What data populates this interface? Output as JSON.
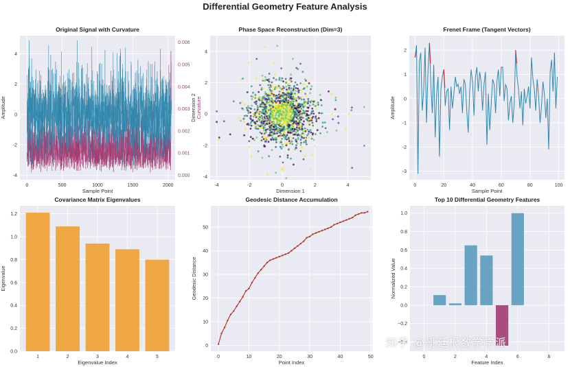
{
  "figure": {
    "title": "Differential Geometry Feature Analysis",
    "watermark": "知乎 @哥廷根数学学派"
  },
  "colors": {
    "panel_bg": "#eaeaf2",
    "grid": "#ffffff",
    "signal": "#2e86ab",
    "curvature": "#a23b72",
    "bars": "#f0a030",
    "geodesic": "#b03a2e",
    "feature_bars": "#5b9bbe",
    "feature_neg": "#a23b72",
    "tangent": "#e0302a"
  },
  "chart_data": [
    {
      "id": "p1",
      "type": "line",
      "title": "Original Signal with Curvature",
      "xlabel": "Sample Point",
      "ylabel": "Amplitude",
      "y2label": "Curvature",
      "xlim": [
        -100,
        2100
      ],
      "ylim": [
        -4.3,
        5.2
      ],
      "y2lim": [
        -0.0002,
        0.0063
      ],
      "xticks": [
        0,
        500,
        1000,
        1500,
        2000
      ],
      "yticks": [
        -4,
        -2,
        0,
        2,
        4
      ],
      "y2ticks": [
        0.0,
        0.001,
        0.002,
        0.003,
        0.004,
        0.005,
        0.006
      ],
      "y2ticklabels": [
        "0.000",
        "0.001",
        "0.002",
        "0.003",
        "0.004",
        "0.005",
        "0.006"
      ],
      "series": [
        {
          "style": "dense-noisy",
          "n_points": 2048,
          "mean": 0.0,
          "spread": 1.7,
          "spikes_to": 4.9
        },
        {
          "style": "curvature",
          "n_points": 2048,
          "floor": 0.0001,
          "typical": 0.0012,
          "max": 0.0062
        }
      ]
    },
    {
      "id": "p2",
      "type": "scatter",
      "title": "Phase Space Reconstruction (Dim=3)",
      "xlabel": "Dimension 1",
      "ylabel": "Dimension 2",
      "xlim": [
        -4.4,
        5.4
      ],
      "ylim": [
        -4.2,
        5.0
      ],
      "xticks": [
        -4,
        -2,
        0,
        2,
        4
      ],
      "yticks": [
        -4,
        -2,
        0,
        2,
        4
      ],
      "colormap": [
        "#440154",
        "#3b528b",
        "#21918c",
        "#5ec962",
        "#fde725"
      ],
      "cloud": {
        "n_points": 1500,
        "center": [
          0,
          0
        ],
        "spread": 1.0,
        "extent_x": [
          -4.0,
          5.0
        ],
        "extent_y": [
          -4.1,
          4.8
        ]
      }
    },
    {
      "id": "p3",
      "type": "line",
      "title": "Frenet Frame (Tangent Vectors)",
      "xlabel": "Sample Point",
      "ylabel": "Amplitude",
      "xlim": [
        -4,
        104
      ],
      "ylim": [
        -3.35,
        2.6
      ],
      "xticks": [
        0,
        20,
        40,
        60,
        80,
        100
      ],
      "yticks": [
        -3,
        -2,
        -1,
        0,
        1,
        2
      ],
      "x": [
        0,
        1,
        2,
        3,
        4,
        5,
        6,
        7,
        8,
        9,
        10,
        11,
        12,
        13,
        14,
        15,
        16,
        17,
        18,
        19,
        20,
        21,
        22,
        23,
        24,
        25,
        26,
        27,
        28,
        29,
        30,
        31,
        32,
        33,
        34,
        35,
        36,
        37,
        38,
        39,
        40,
        41,
        42,
        43,
        44,
        45,
        46,
        47,
        48,
        49,
        50,
        51,
        52,
        53,
        54,
        55,
        56,
        57,
        58,
        59,
        60,
        61,
        62,
        63,
        64,
        65,
        66,
        67,
        68,
        69,
        70,
        71,
        72,
        73,
        74,
        75,
        76,
        77,
        78,
        79,
        80,
        81,
        82,
        83,
        84,
        85,
        86,
        87,
        88,
        89,
        90,
        91,
        92,
        93,
        94,
        95,
        96,
        97,
        98,
        99
      ],
      "values": [
        1.7,
        2.2,
        -3.1,
        1.5,
        1.9,
        -0.5,
        0.3,
        2.1,
        -1.0,
        1.1,
        2.3,
        0.6,
        -0.6,
        1.4,
        -1.6,
        0.2,
        0.9,
        -2.4,
        0.4,
        0.9,
        1.2,
        -0.3,
        0.3,
        0.4,
        -1.3,
        0.5,
        -0.4,
        0.2,
        0.9,
        0.5,
        0.6,
        0.2,
        0.5,
        -0.6,
        0.8,
        0.6,
        -0.5,
        -1.4,
        0.3,
        1.2,
        0.7,
        -0.7,
        0.9,
        1.3,
        0.3,
        1.1,
        0.7,
        -0.5,
        0.6,
        1.1,
        -1.9,
        0.2,
        -1.3,
        -0.2,
        0.8,
        0.6,
        -0.6,
        0.7,
        1.2,
        0.1,
        1.3,
        1.3,
        -0.1,
        0.6,
        0.4,
        -0.9,
        -0.2,
        0.1,
        -1.0,
        -0.2,
        2.0,
        0.9,
        0.4,
        -0.4,
        0.3,
        -1.1,
        0.4,
        -0.2,
        0.1,
        0.5,
        -0.4,
        1.7,
        0.8,
        0.4,
        -0.5,
        0.8,
        0.1,
        -1.0,
        -0.3,
        0.7,
        0.2,
        -0.8,
        0.0,
        -2.1,
        1.1,
        1.6,
        0.3,
        1.9,
        -0.4,
        0.9
      ],
      "tangent_at": [
        0,
        10,
        20,
        70
      ]
    },
    {
      "id": "p4",
      "type": "bar",
      "title": "Covariance Matrix Eigenvalues",
      "xlabel": "Eigenvalue Index",
      "ylabel": "Eigenvalue",
      "categories": [
        "1",
        "2",
        "3",
        "4",
        "5"
      ],
      "values": [
        1.21,
        1.09,
        0.94,
        0.89,
        0.8
      ],
      "ylim": [
        0,
        1.27
      ],
      "yticks": [
        0.0,
        0.2,
        0.4,
        0.6,
        0.8,
        1.0,
        1.2
      ],
      "yticklabels": [
        "0.0",
        "0.2",
        "0.4",
        "0.6",
        "0.8",
        "1.0",
        "1.2"
      ]
    },
    {
      "id": "p5",
      "type": "line",
      "title": "Geodesic Distance Accumulation",
      "xlabel": "Point Index",
      "ylabel": "Geodesic Distance",
      "xlim": [
        -2.5,
        50.5
      ],
      "ylim": [
        -2.5,
        59
      ],
      "xticks": [
        0,
        10,
        20,
        30,
        40,
        50
      ],
      "yticks": [
        0,
        10,
        20,
        30,
        40,
        50
      ],
      "x": [
        0,
        1,
        2,
        3,
        4,
        5,
        6,
        7,
        8,
        9,
        10,
        11,
        12,
        13,
        14,
        15,
        16,
        17,
        18,
        19,
        20,
        21,
        22,
        23,
        24,
        25,
        26,
        27,
        28,
        29,
        30,
        31,
        32,
        33,
        34,
        35,
        36,
        37,
        38,
        39,
        40,
        41,
        42,
        43,
        44,
        45,
        46,
        47,
        48,
        49
      ],
      "values": [
        0.5,
        5.0,
        7.5,
        10.5,
        13.0,
        14.5,
        16.5,
        18.5,
        20.5,
        23.0,
        24.0,
        26.5,
        28.5,
        30.5,
        32.0,
        33.5,
        35.0,
        36.0,
        36.5,
        37.0,
        37.5,
        38.0,
        38.5,
        39.0,
        40.0,
        41.0,
        42.0,
        43.0,
        44.0,
        45.5,
        46.0,
        47.0,
        47.5,
        48.0,
        48.5,
        49.0,
        49.5,
        50.0,
        51.0,
        51.5,
        52.0,
        52.5,
        53.0,
        53.5,
        54.0,
        55.0,
        55.5,
        56.0,
        56.0,
        56.5
      ]
    },
    {
      "id": "p6",
      "type": "bar",
      "title": "Top 10 Differential Geometry Features",
      "xlabel": "Feature Index",
      "ylabel": "Normalized Value",
      "categories": [
        0,
        1,
        2,
        3,
        4,
        5,
        6,
        7,
        8,
        9
      ],
      "values": [
        0.0,
        0.11,
        0.02,
        0.65,
        0.54,
        -0.44,
        1.0,
        0.0,
        0.0,
        0.0
      ],
      "xlim": [
        -0.9,
        9.0
      ],
      "ylim": [
        -0.5,
        1.08
      ],
      "xticks": [
        0,
        2,
        4,
        6,
        8
      ],
      "yticks": [
        -0.4,
        -0.2,
        0.0,
        0.2,
        0.4,
        0.6,
        0.8,
        1.0
      ],
      "yticklabels": [
        "−0.4",
        "−0.2",
        "0.0",
        "0.2",
        "0.4",
        "0.6",
        "0.8",
        "1.0"
      ]
    }
  ]
}
